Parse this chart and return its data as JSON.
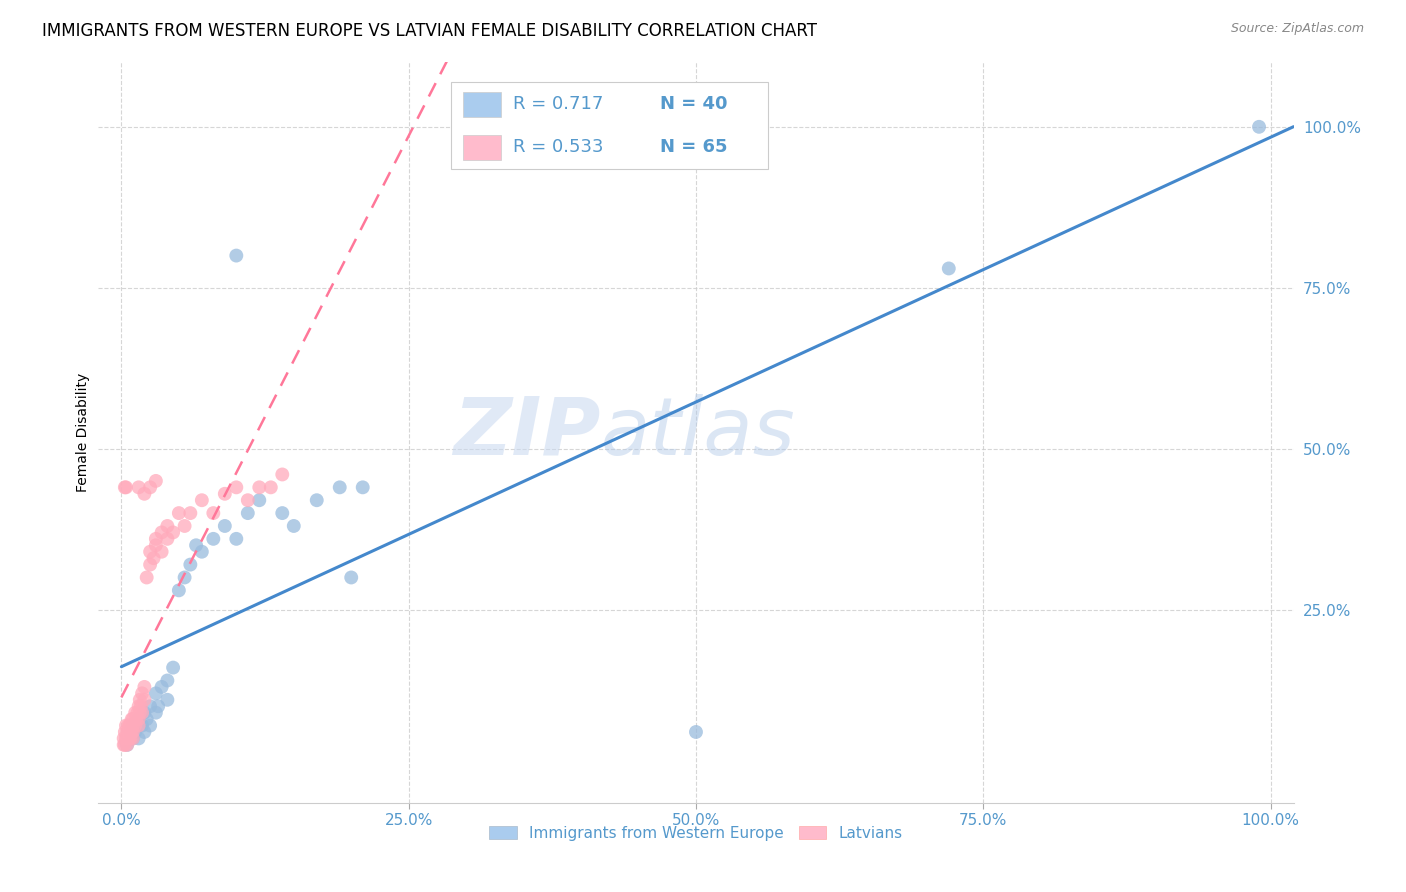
{
  "title": "IMMIGRANTS FROM WESTERN EUROPE VS LATVIAN FEMALE DISABILITY CORRELATION CHART",
  "source_text": "Source: ZipAtlas.com",
  "ylabel": "Female Disability",
  "xlim": [
    -0.02,
    1.02
  ],
  "ylim": [
    -0.05,
    1.1
  ],
  "x_tick_labels": [
    "0.0%",
    "25.0%",
    "50.0%",
    "75.0%",
    "100.0%"
  ],
  "x_tick_vals": [
    0,
    0.25,
    0.5,
    0.75,
    1.0
  ],
  "y_tick_labels": [
    "25.0%",
    "50.0%",
    "75.0%",
    "100.0%"
  ],
  "y_tick_vals": [
    0.25,
    0.5,
    0.75,
    1.0
  ],
  "blue_dot_color": "#99BBDD",
  "pink_dot_color": "#FFAABB",
  "blue_line_color": "#4488CC",
  "pink_line_color": "#FF7799",
  "legend_blue_fill": "#AACCEE",
  "legend_pink_fill": "#FFBBCC",
  "legend_r_blue": "R = 0.717",
  "legend_n_blue": "N = 40",
  "legend_r_pink": "R = 0.533",
  "legend_n_pink": "N = 65",
  "watermark_zip": "ZIP",
  "watermark_atlas": "atlas",
  "background_color": "#FFFFFF",
  "grid_color": "#CCCCCC",
  "tick_color": "#5599CC",
  "title_fontsize": 12,
  "axis_label_fontsize": 10,
  "tick_fontsize": 11,
  "blue_scatter_x": [
    0.005,
    0.008,
    0.01,
    0.01,
    0.012,
    0.015,
    0.015,
    0.018,
    0.02,
    0.02,
    0.022,
    0.025,
    0.025,
    0.03,
    0.03,
    0.032,
    0.035,
    0.04,
    0.04,
    0.045,
    0.05,
    0.055,
    0.06,
    0.065,
    0.07,
    0.08,
    0.09,
    0.1,
    0.11,
    0.12,
    0.14,
    0.15,
    0.17,
    0.19,
    0.21,
    0.5,
    0.72,
    0.1,
    0.2,
    0.99
  ],
  "blue_scatter_y": [
    0.04,
    0.06,
    0.05,
    0.07,
    0.06,
    0.05,
    0.08,
    0.07,
    0.06,
    0.09,
    0.08,
    0.1,
    0.07,
    0.09,
    0.12,
    0.1,
    0.13,
    0.14,
    0.11,
    0.16,
    0.28,
    0.3,
    0.32,
    0.35,
    0.34,
    0.36,
    0.38,
    0.36,
    0.4,
    0.42,
    0.4,
    0.38,
    0.42,
    0.44,
    0.44,
    0.06,
    0.78,
    0.8,
    0.3,
    1.0
  ],
  "pink_scatter_x": [
    0.002,
    0.002,
    0.003,
    0.003,
    0.004,
    0.004,
    0.005,
    0.005,
    0.005,
    0.006,
    0.006,
    0.006,
    0.007,
    0.007,
    0.008,
    0.008,
    0.008,
    0.009,
    0.009,
    0.01,
    0.01,
    0.01,
    0.01,
    0.012,
    0.012,
    0.013,
    0.014,
    0.015,
    0.015,
    0.015,
    0.016,
    0.016,
    0.017,
    0.018,
    0.018,
    0.02,
    0.02,
    0.022,
    0.025,
    0.025,
    0.028,
    0.03,
    0.03,
    0.035,
    0.035,
    0.04,
    0.04,
    0.045,
    0.05,
    0.055,
    0.06,
    0.07,
    0.08,
    0.09,
    0.1,
    0.11,
    0.12,
    0.13,
    0.14,
    0.015,
    0.02,
    0.025,
    0.03,
    0.003,
    0.004
  ],
  "pink_scatter_y": [
    0.04,
    0.05,
    0.04,
    0.06,
    0.05,
    0.07,
    0.04,
    0.05,
    0.06,
    0.05,
    0.06,
    0.07,
    0.05,
    0.07,
    0.05,
    0.06,
    0.07,
    0.06,
    0.08,
    0.05,
    0.06,
    0.07,
    0.08,
    0.07,
    0.09,
    0.08,
    0.09,
    0.07,
    0.08,
    0.1,
    0.09,
    0.11,
    0.1,
    0.09,
    0.12,
    0.11,
    0.13,
    0.3,
    0.32,
    0.34,
    0.33,
    0.35,
    0.36,
    0.34,
    0.37,
    0.36,
    0.38,
    0.37,
    0.4,
    0.38,
    0.4,
    0.42,
    0.4,
    0.43,
    0.44,
    0.42,
    0.44,
    0.44,
    0.46,
    0.44,
    0.43,
    0.44,
    0.45,
    0.44,
    0.44
  ]
}
